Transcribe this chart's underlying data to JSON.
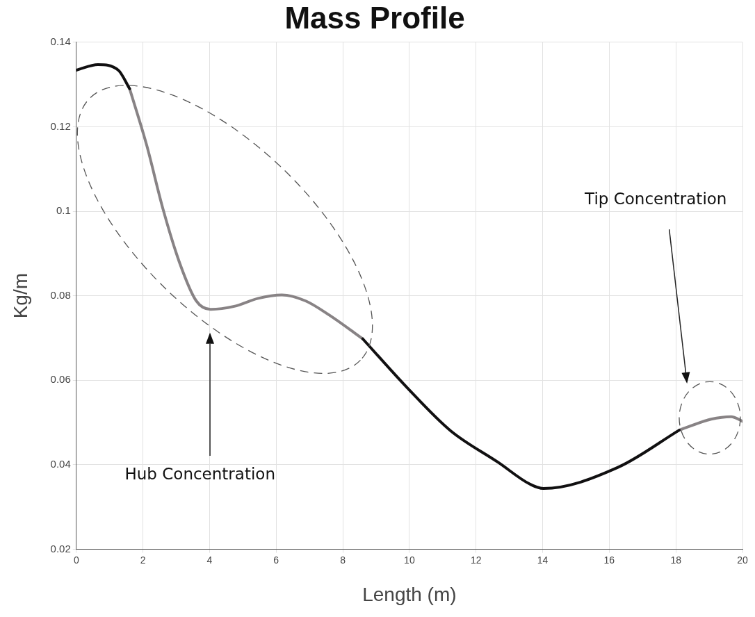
{
  "chart_data": {
    "type": "line",
    "title": "Mass Profile",
    "xlabel": "Length (m)",
    "ylabel": "Kg/m",
    "series": [
      {
        "color": "#111011",
        "x": [
          0,
          0.65,
          1.26,
          1.6,
          5,
          8.6,
          9.95,
          11.23,
          12.68,
          13.6,
          14.02,
          16.26,
          18.1
        ],
        "values": [
          0.1334,
          0.1347,
          0.1334,
          0.129,
          null,
          0.0698,
          0.0581,
          0.0481,
          0.0405,
          0.0355,
          0.0344,
          0.0394,
          0.0482
        ]
      },
      {
        "color": "#888385",
        "x": [
          1.6,
          2.11,
          2.6,
          3.11,
          3.6,
          4.03,
          4.74,
          5.46,
          6.17,
          6.88,
          7.6,
          8.6,
          13,
          18.1,
          19.06,
          19.66,
          20
        ],
        "values": [
          0.129,
          0.1157,
          0.1006,
          0.0876,
          0.0788,
          0.0768,
          0.0775,
          0.0794,
          0.0802,
          0.0788,
          0.0754,
          0.0698,
          null,
          0.0482,
          0.0508,
          0.0514,
          0.0503
        ]
      }
    ],
    "xlim": [
      0,
      20
    ],
    "xticks": [
      0,
      2,
      4,
      6,
      8,
      10,
      12,
      14,
      16,
      18,
      20
    ],
    "ylim": [
      0.02,
      0.14
    ],
    "yticks": [
      0.02,
      0.04,
      0.06,
      0.08,
      0.1,
      0.12,
      0.14
    ],
    "grid": true,
    "legend": false,
    "marker": "none",
    "line_style": "solid",
    "annotations": [
      "Hub Concentration",
      "Tip Concentration"
    ]
  }
}
